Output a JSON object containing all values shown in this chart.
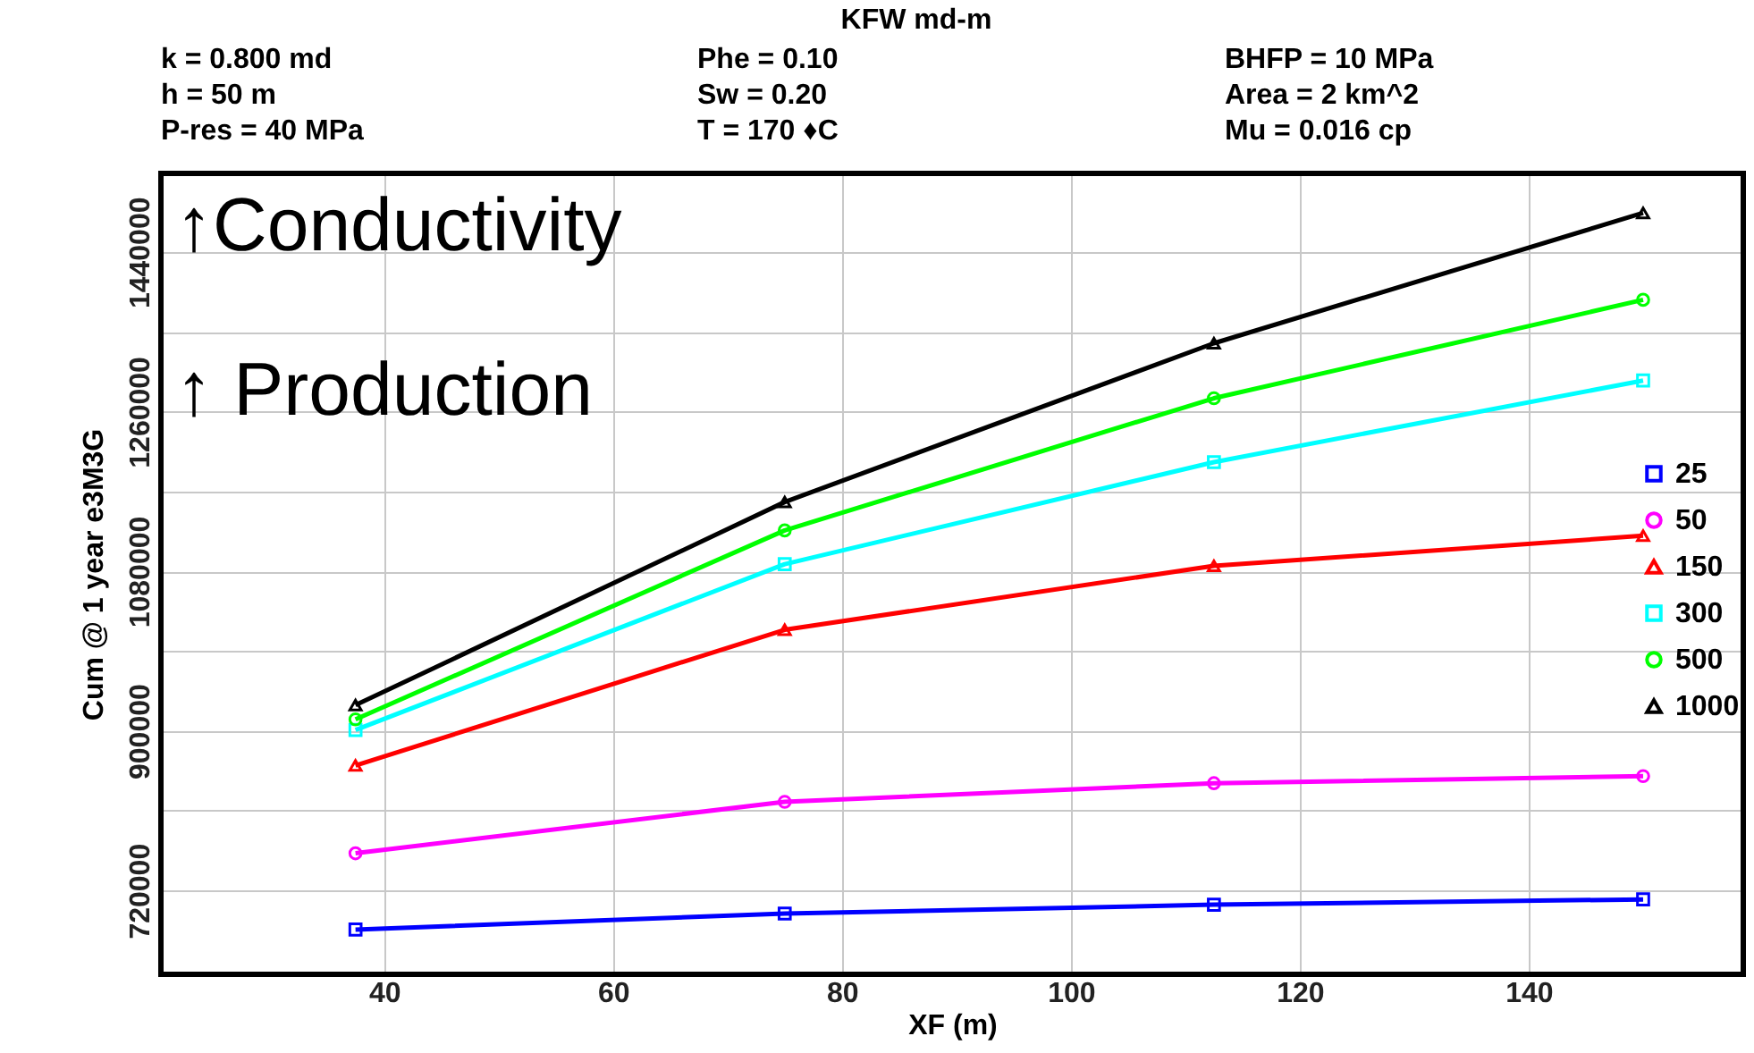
{
  "chart_data": {
    "type": "line",
    "title": "KFW md-m",
    "xlabel": "XF (m)",
    "ylabel": "Cum @ 1 year e3M3G",
    "annotations": [
      "k = 0.800 md",
      "Phe = 0.10",
      "BHFP = 10 MPa",
      "h = 50 m",
      "Sw = 0.20",
      "Area = 2 km^2",
      "P-res = 40 MPa",
      "T = 170 ♦C",
      "Mu = 0.016 cp",
      "↑Conductivity",
      "↑ Production"
    ],
    "x": [
      37.5,
      75,
      112.5,
      150
    ],
    "series": [
      {
        "name": "25",
        "color": "#0000ff",
        "marker": "square",
        "values": [
          676000,
          694000,
          704000,
          710000
        ]
      },
      {
        "name": "50",
        "color": "#ff00ff",
        "marker": "circle",
        "values": [
          762000,
          820000,
          841000,
          849000
        ]
      },
      {
        "name": "150",
        "color": "#ff0000",
        "marker": "triangle",
        "values": [
          861000,
          1014000,
          1086000,
          1120000
        ]
      },
      {
        "name": "300",
        "color": "#00ffff",
        "marker": "square",
        "values": [
          901000,
          1088000,
          1203000,
          1295000
        ]
      },
      {
        "name": "500",
        "color": "#00ff00",
        "marker": "circle",
        "values": [
          913000,
          1126000,
          1275000,
          1386000
        ]
      },
      {
        "name": "1000",
        "color": "#000000",
        "marker": "triangle",
        "values": [
          929000,
          1158000,
          1337000,
          1484000
        ]
      }
    ],
    "xlim": [
      20.5,
      158.75
    ],
    "ylim": [
      625500,
      1528500
    ],
    "xticks": [
      40,
      60,
      80,
      100,
      120,
      140
    ],
    "yticks": [
      720000,
      {
        "value": 810000,
        "label": null
      },
      900000,
      {
        "value": 990000,
        "label": null
      },
      1080000,
      {
        "value": 1170000,
        "label": null
      },
      1260000,
      {
        "value": 1350000,
        "label": null
      },
      1440000
    ],
    "grid": true,
    "legend": "right",
    "line_style": "solid"
  }
}
